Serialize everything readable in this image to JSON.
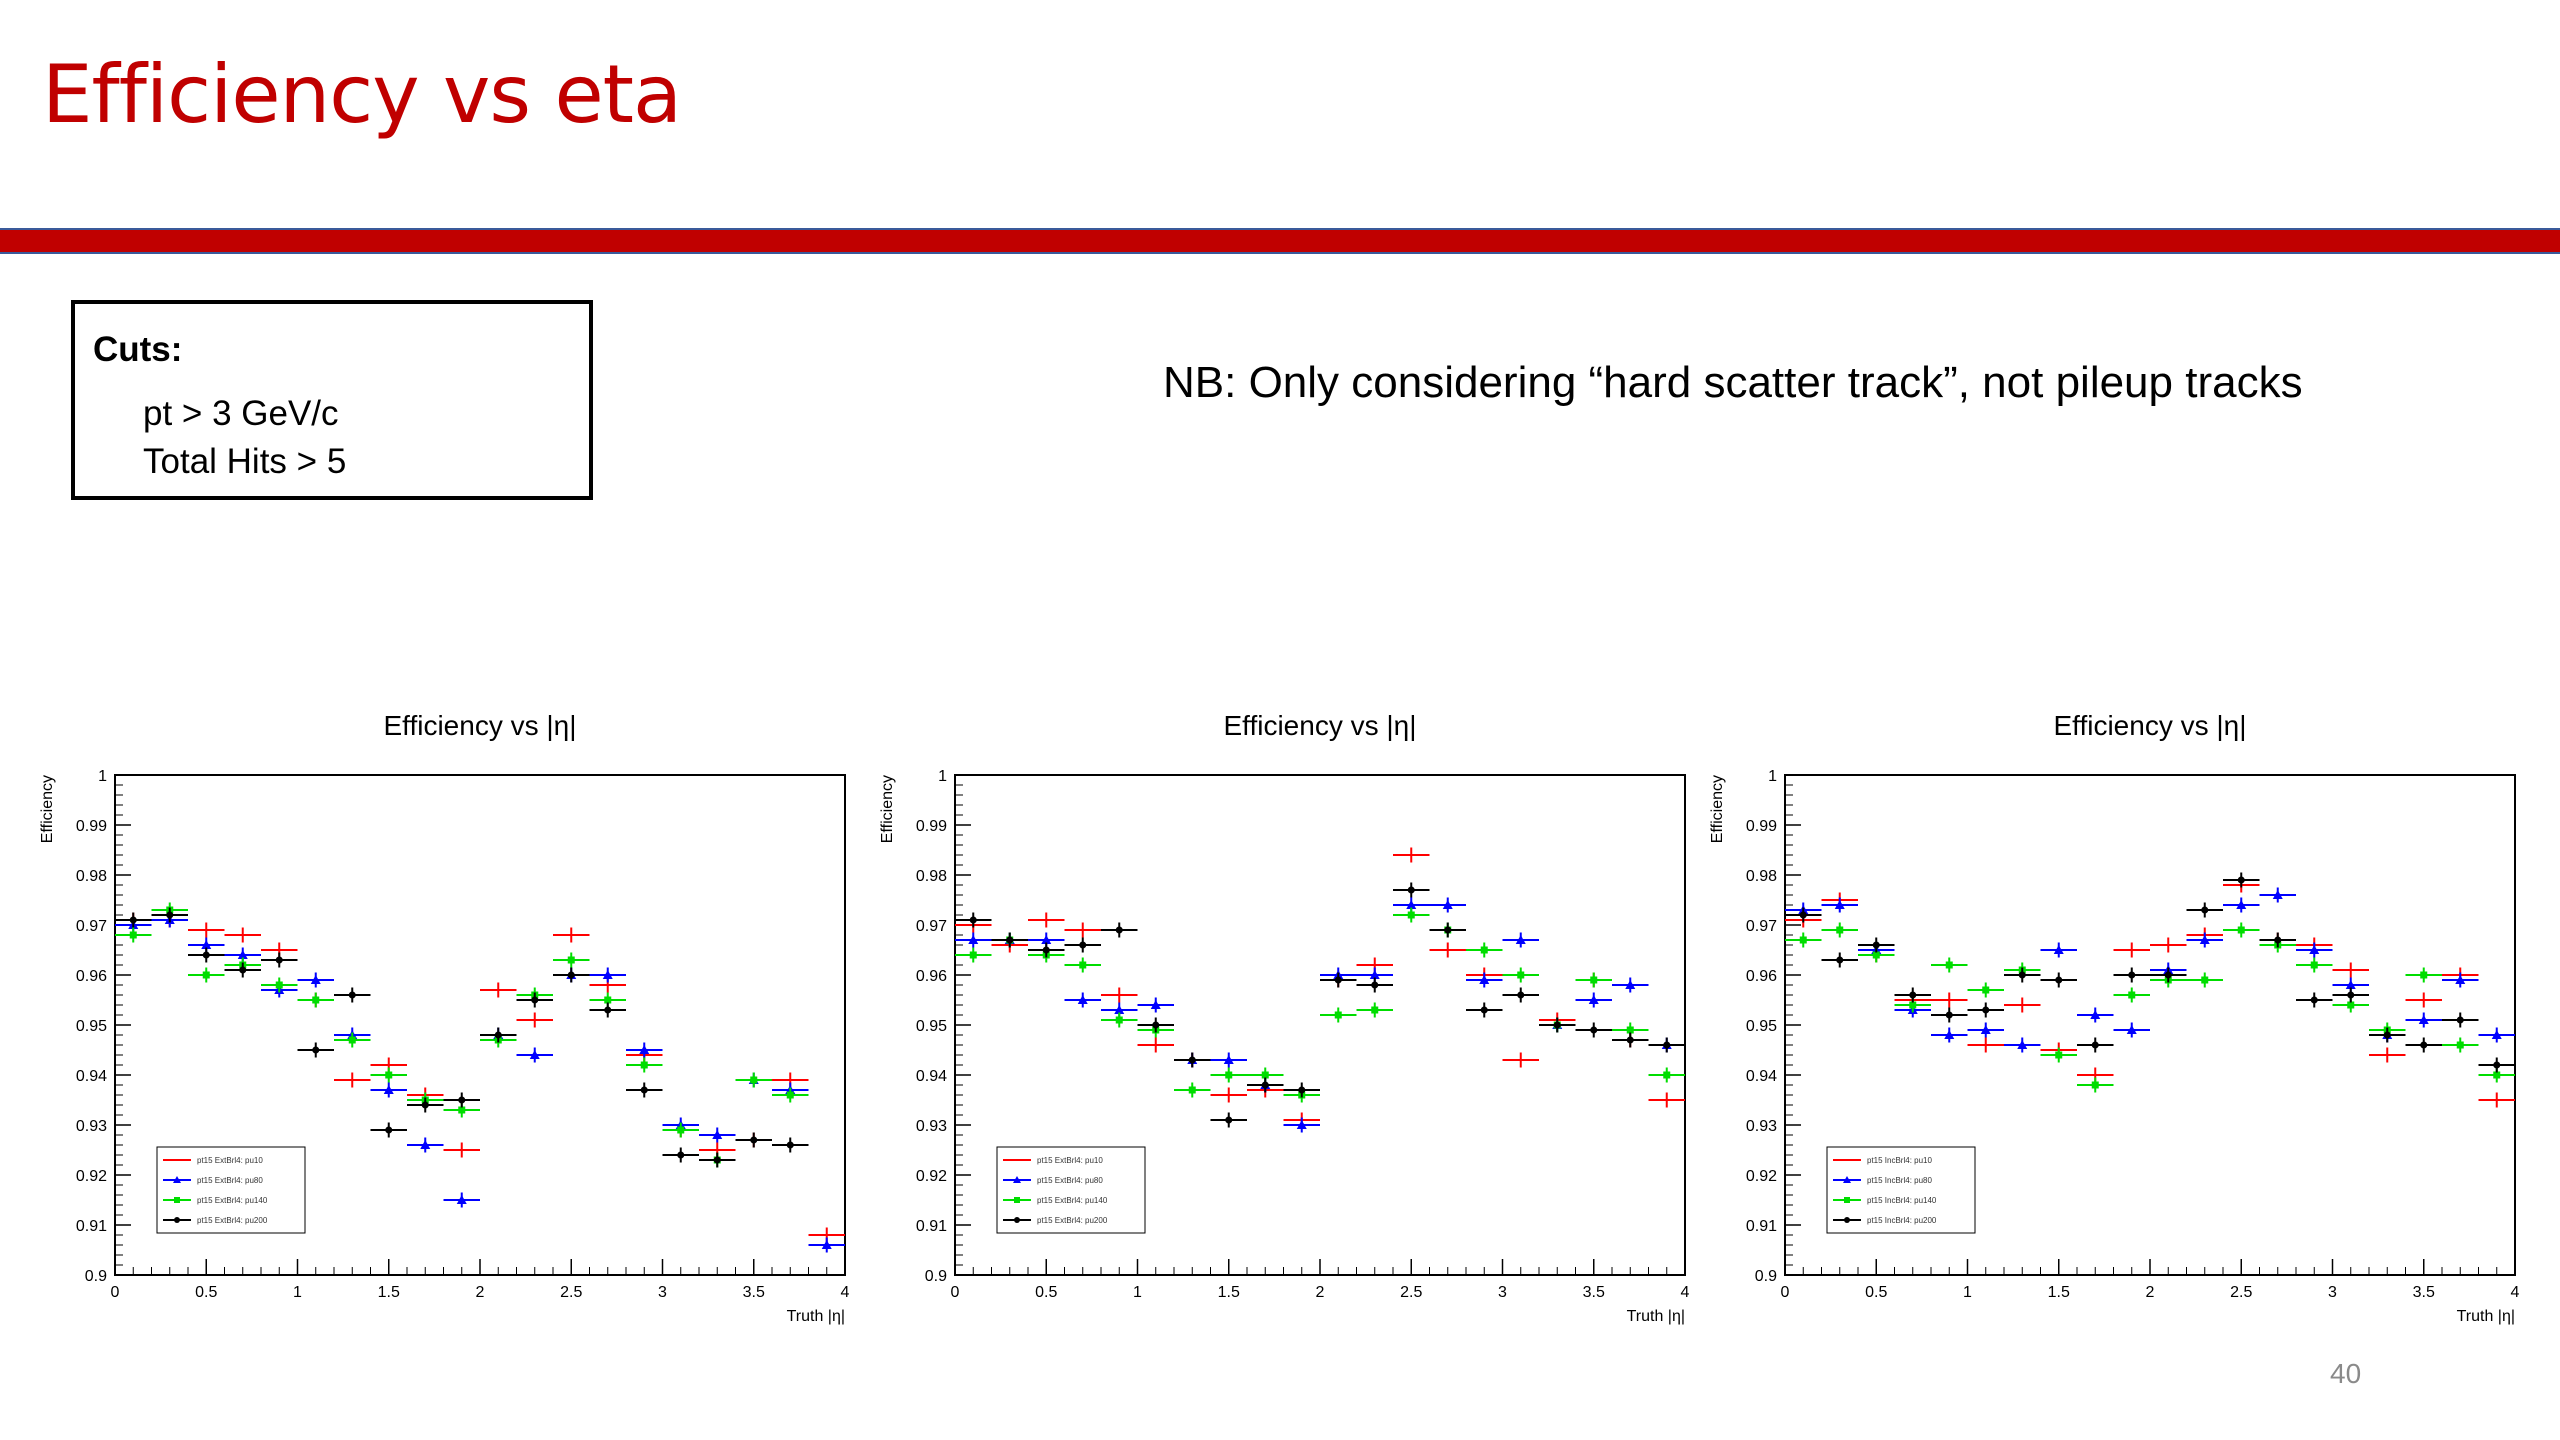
{
  "slide": {
    "title": "Efficiency vs eta",
    "cuts_title": "Cuts:",
    "cuts": [
      "pt > 3 GeV/c",
      "Total Hits > 5"
    ],
    "note": "NB: Only considering “hard scatter track”, not pileup tracks",
    "page_number": "40",
    "title_color": "#c00000"
  },
  "chart_data": [
    {
      "type": "scatter",
      "title": "Efficiency vs |η|",
      "xlabel": "Truth |η|",
      "ylabel": "Efficiency",
      "xlim": [
        0,
        4
      ],
      "ylim": [
        0.9,
        1.0
      ],
      "xticks": [
        "0",
        "0.5",
        "1",
        "1.5",
        "2",
        "2.5",
        "3",
        "3.5",
        "4"
      ],
      "yticks": [
        "0.9",
        "0.91",
        "0.92",
        "0.93",
        "0.94",
        "0.95",
        "0.96",
        "0.97",
        "0.98",
        "0.99",
        "1"
      ],
      "legend_position": "bottom-left",
      "series": [
        {
          "name": "pt15 ExtBrl4: pu10",
          "color": "#ff0000",
          "marker": "none",
          "x": [
            0.1,
            0.3,
            0.5,
            0.7,
            0.9,
            1.1,
            1.3,
            1.5,
            1.7,
            1.9,
            2.1,
            2.3,
            2.5,
            2.7,
            2.9,
            3.1,
            3.3,
            3.5,
            3.7,
            3.9
          ],
          "y": [
            0.971,
            0.971,
            0.969,
            0.968,
            0.965,
            0.955,
            0.939,
            0.942,
            0.936,
            0.925,
            0.957,
            0.951,
            0.968,
            0.958,
            0.944,
            0.929,
            0.925,
            0.927,
            0.939,
            0.908
          ]
        },
        {
          "name": "pt15 ExtBrl4: pu80",
          "color": "#0000ff",
          "marker": "triangle",
          "x": [
            0.1,
            0.3,
            0.5,
            0.7,
            0.9,
            1.1,
            1.3,
            1.5,
            1.7,
            1.9,
            2.1,
            2.3,
            2.5,
            2.7,
            2.9,
            3.1,
            3.3,
            3.5,
            3.7,
            3.9
          ],
          "y": [
            0.97,
            0.971,
            0.966,
            0.964,
            0.957,
            0.959,
            0.948,
            0.937,
            0.926,
            0.915,
            0.948,
            0.944,
            0.96,
            0.96,
            0.945,
            0.93,
            0.928,
            0.939,
            0.937,
            0.906
          ]
        },
        {
          "name": "pt15 ExtBrl4: pu140",
          "color": "#00dd00",
          "marker": "square",
          "x": [
            0.1,
            0.3,
            0.5,
            0.7,
            0.9,
            1.1,
            1.3,
            1.5,
            1.7,
            1.9,
            2.1,
            2.3,
            2.5,
            2.7,
            2.9,
            3.1,
            3.3,
            3.5,
            3.7
          ],
          "y": [
            0.968,
            0.973,
            0.96,
            0.962,
            0.958,
            0.955,
            0.947,
            0.94,
            0.935,
            0.933,
            0.947,
            0.956,
            0.963,
            0.955,
            0.942,
            0.929,
            0.923,
            0.939,
            0.936
          ]
        },
        {
          "name": "pt15 ExtBrl4: pu200",
          "color": "#000000",
          "marker": "circle",
          "x": [
            0.1,
            0.3,
            0.5,
            0.7,
            0.9,
            1.1,
            1.3,
            1.5,
            1.7,
            1.9,
            2.1,
            2.3,
            2.5,
            2.7,
            2.9,
            3.1,
            3.3,
            3.5,
            3.7
          ],
          "y": [
            0.971,
            0.972,
            0.964,
            0.961,
            0.963,
            0.945,
            0.956,
            0.929,
            0.934,
            0.935,
            0.948,
            0.955,
            0.96,
            0.953,
            0.937,
            0.924,
            0.923,
            0.927,
            0.926
          ]
        }
      ]
    },
    {
      "type": "scatter",
      "title": "Efficiency vs |η|",
      "xlabel": "Truth |η|",
      "ylabel": "Efficiency",
      "xlim": [
        0,
        4
      ],
      "ylim": [
        0.9,
        1.0
      ],
      "xticks": [
        "0",
        "0.5",
        "1",
        "1.5",
        "2",
        "2.5",
        "3",
        "3.5",
        "4"
      ],
      "yticks": [
        "0.9",
        "0.91",
        "0.92",
        "0.93",
        "0.94",
        "0.95",
        "0.96",
        "0.97",
        "0.98",
        "0.99",
        "1"
      ],
      "legend_position": "bottom-left",
      "series": [
        {
          "name": "pt15 ExtBrl4: pu10",
          "color": "#ff0000",
          "marker": "none",
          "x": [
            0.1,
            0.3,
            0.5,
            0.7,
            0.9,
            1.1,
            1.3,
            1.5,
            1.7,
            1.9,
            2.1,
            2.3,
            2.5,
            2.7,
            2.9,
            3.1,
            3.3,
            3.5,
            3.7,
            3.9
          ],
          "y": [
            0.97,
            0.966,
            0.971,
            0.969,
            0.956,
            0.946,
            0.943,
            0.936,
            0.937,
            0.931,
            0.959,
            0.962,
            0.984,
            0.965,
            0.96,
            0.943,
            0.951,
            0.959,
            0.947,
            0.935
          ]
        },
        {
          "name": "pt15 ExtBrl4: pu80",
          "color": "#0000ff",
          "marker": "triangle",
          "x": [
            0.1,
            0.3,
            0.5,
            0.7,
            0.9,
            1.1,
            1.3,
            1.5,
            1.7,
            1.9,
            2.1,
            2.3,
            2.5,
            2.7,
            2.9,
            3.1,
            3.3,
            3.5,
            3.7,
            3.9
          ],
          "y": [
            0.967,
            0.967,
            0.967,
            0.955,
            0.953,
            0.954,
            0.943,
            0.943,
            0.938,
            0.93,
            0.96,
            0.96,
            0.974,
            0.974,
            0.959,
            0.967,
            0.95,
            0.955,
            0.958,
            0.946
          ]
        },
        {
          "name": "pt15 ExtBrl4: pu140",
          "color": "#00dd00",
          "marker": "square",
          "x": [
            0.1,
            0.3,
            0.5,
            0.7,
            0.9,
            1.1,
            1.3,
            1.5,
            1.7,
            1.9,
            2.1,
            2.3,
            2.5,
            2.7,
            2.9,
            3.1,
            3.3,
            3.5,
            3.7,
            3.9
          ],
          "y": [
            0.964,
            0.967,
            0.964,
            0.962,
            0.951,
            0.949,
            0.937,
            0.94,
            0.94,
            0.936,
            0.952,
            0.953,
            0.972,
            0.969,
            0.965,
            0.96,
            0.95,
            0.959,
            0.949,
            0.94
          ]
        },
        {
          "name": "pt15 ExtBrl4: pu200",
          "color": "#000000",
          "marker": "circle",
          "x": [
            0.1,
            0.3,
            0.5,
            0.7,
            0.9,
            1.1,
            1.3,
            1.5,
            1.7,
            1.9,
            2.1,
            2.3,
            2.5,
            2.7,
            2.9,
            3.1,
            3.3,
            3.5,
            3.7,
            3.9
          ],
          "y": [
            0.971,
            0.967,
            0.965,
            0.966,
            0.969,
            0.95,
            0.943,
            0.931,
            0.938,
            0.937,
            0.959,
            0.958,
            0.977,
            0.969,
            0.953,
            0.956,
            0.95,
            0.949,
            0.947,
            0.946
          ]
        }
      ]
    },
    {
      "type": "scatter",
      "title": "Efficiency vs |η|",
      "xlabel": "Truth |η|",
      "ylabel": "Efficiency",
      "xlim": [
        0,
        4
      ],
      "ylim": [
        0.9,
        1.0
      ],
      "xticks": [
        "0",
        "0.5",
        "1",
        "1.5",
        "2",
        "2.5",
        "3",
        "3.5",
        "4"
      ],
      "yticks": [
        "0.9",
        "0.91",
        "0.92",
        "0.93",
        "0.94",
        "0.95",
        "0.96",
        "0.97",
        "0.98",
        "0.99",
        "1"
      ],
      "legend_position": "bottom-left",
      "series": [
        {
          "name": "pt15 IncBrl4: pu10",
          "color": "#ff0000",
          "marker": "none",
          "x": [
            0.1,
            0.3,
            0.5,
            0.7,
            0.9,
            1.1,
            1.3,
            1.5,
            1.7,
            1.9,
            2.1,
            2.3,
            2.5,
            2.7,
            2.9,
            3.1,
            3.3,
            3.5,
            3.7,
            3.9
          ],
          "y": [
            0.971,
            0.975,
            0.964,
            0.955,
            0.955,
            0.946,
            0.954,
            0.945,
            0.94,
            0.965,
            0.966,
            0.968,
            0.978,
            0.967,
            0.966,
            0.961,
            0.944,
            0.955,
            0.96,
            0.935
          ]
        },
        {
          "name": "pt15 IncBrl4: pu80",
          "color": "#0000ff",
          "marker": "triangle",
          "x": [
            0.1,
            0.3,
            0.5,
            0.7,
            0.9,
            1.1,
            1.3,
            1.5,
            1.7,
            1.9,
            2.1,
            2.3,
            2.5,
            2.7,
            2.9,
            3.1,
            3.3,
            3.5,
            3.7,
            3.9
          ],
          "y": [
            0.973,
            0.974,
            0.965,
            0.953,
            0.948,
            0.949,
            0.946,
            0.965,
            0.952,
            0.949,
            0.961,
            0.967,
            0.974,
            0.976,
            0.965,
            0.958,
            0.948,
            0.951,
            0.959,
            0.948
          ]
        },
        {
          "name": "pt15 IncBrl4: pu140",
          "color": "#00dd00",
          "marker": "square",
          "x": [
            0.1,
            0.3,
            0.5,
            0.7,
            0.9,
            1.1,
            1.3,
            1.5,
            1.7,
            1.9,
            2.1,
            2.3,
            2.5,
            2.7,
            2.9,
            3.1,
            3.3,
            3.5,
            3.7,
            3.9
          ],
          "y": [
            0.967,
            0.969,
            0.964,
            0.954,
            0.962,
            0.957,
            0.961,
            0.944,
            0.938,
            0.956,
            0.959,
            0.959,
            0.969,
            0.966,
            0.962,
            0.954,
            0.949,
            0.96,
            0.946,
            0.94
          ]
        },
        {
          "name": "pt15 IncBrl4: pu200",
          "color": "#000000",
          "marker": "circle",
          "x": [
            0.1,
            0.3,
            0.5,
            0.7,
            0.9,
            1.1,
            1.3,
            1.5,
            1.7,
            1.9,
            2.1,
            2.3,
            2.5,
            2.7,
            2.9,
            3.1,
            3.3,
            3.5,
            3.7,
            3.9
          ],
          "y": [
            0.972,
            0.963,
            0.966,
            0.956,
            0.952,
            0.953,
            0.96,
            0.959,
            0.946,
            0.96,
            0.96,
            0.973,
            0.979,
            0.967,
            0.955,
            0.956,
            0.948,
            0.946,
            0.951,
            0.942
          ]
        }
      ]
    }
  ]
}
